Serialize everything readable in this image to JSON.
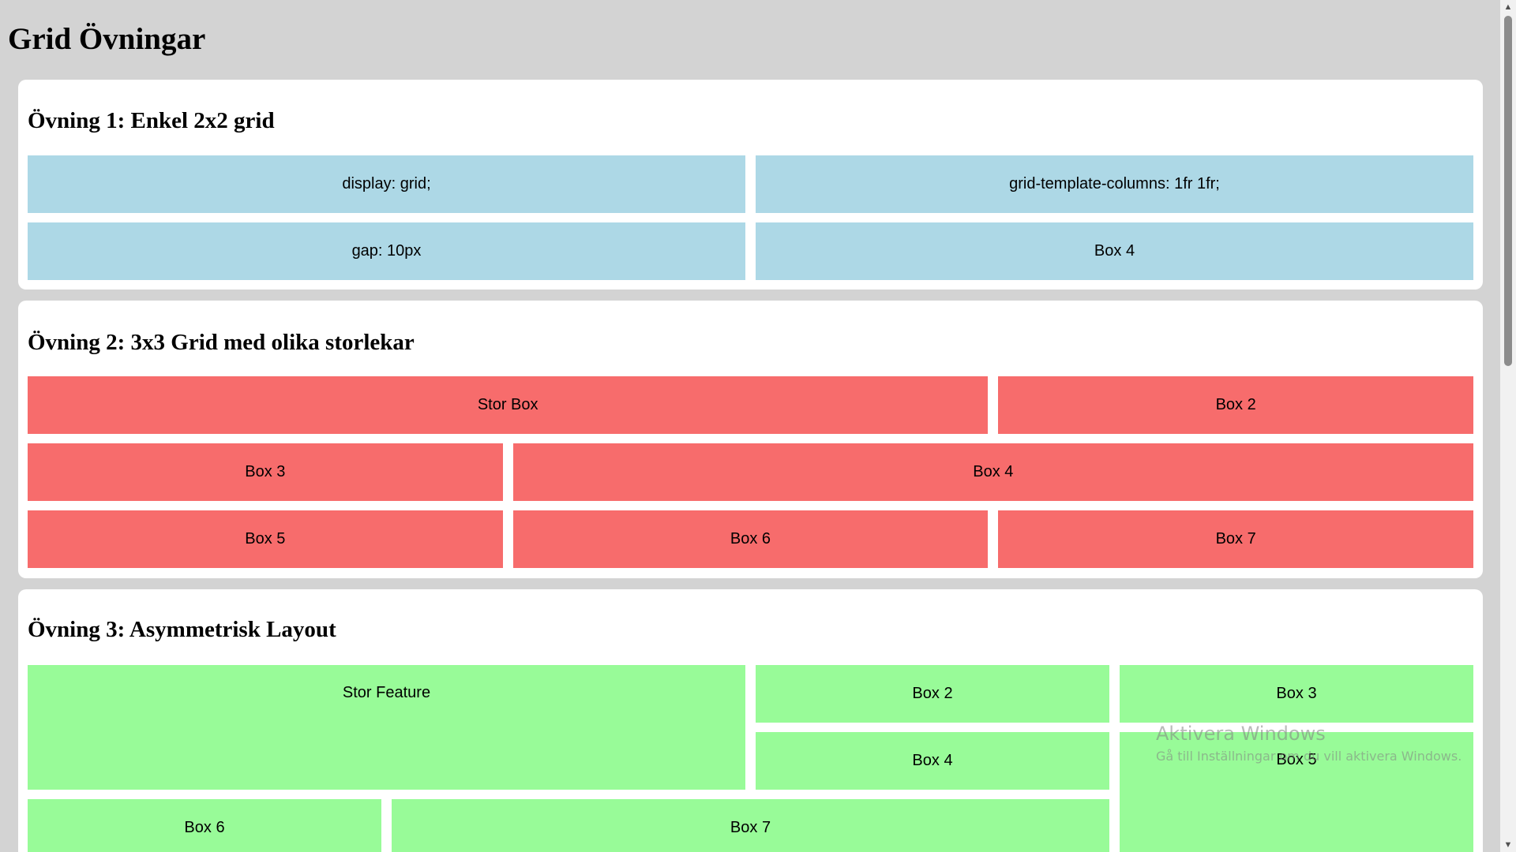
{
  "page": {
    "title": "Grid Övningar"
  },
  "exercise1": {
    "title": "Övning 1: Enkel 2x2 grid",
    "boxes": [
      "display: grid;",
      "grid-template-columns: 1fr 1fr;",
      "gap: 10px",
      "Box 4"
    ],
    "color": "#add8e6"
  },
  "exercise2": {
    "title": "Övning 2: 3x3 Grid med olika storlekar",
    "boxes": [
      "Stor Box",
      "Box 2",
      "Box 3",
      "Box 4",
      "Box 5",
      "Box 6",
      "Box 7"
    ],
    "color": "#f76c6c"
  },
  "exercise3": {
    "title": "Övning 3: Asymmetrisk Layout",
    "boxes": [
      "Stor Feature",
      "Box 2",
      "Box 3",
      "Box 4",
      "Box 5",
      "Box 6",
      "Box 7"
    ],
    "color": "#98fb98"
  },
  "watermark": {
    "title": "Aktivera Windows",
    "subtitle": "Gå till Inställningar om du vill aktivera Windows."
  },
  "scrollbar": {
    "up_icon": "scroll-up-arrow-icon",
    "down_icon": "scroll-down-arrow-icon"
  }
}
